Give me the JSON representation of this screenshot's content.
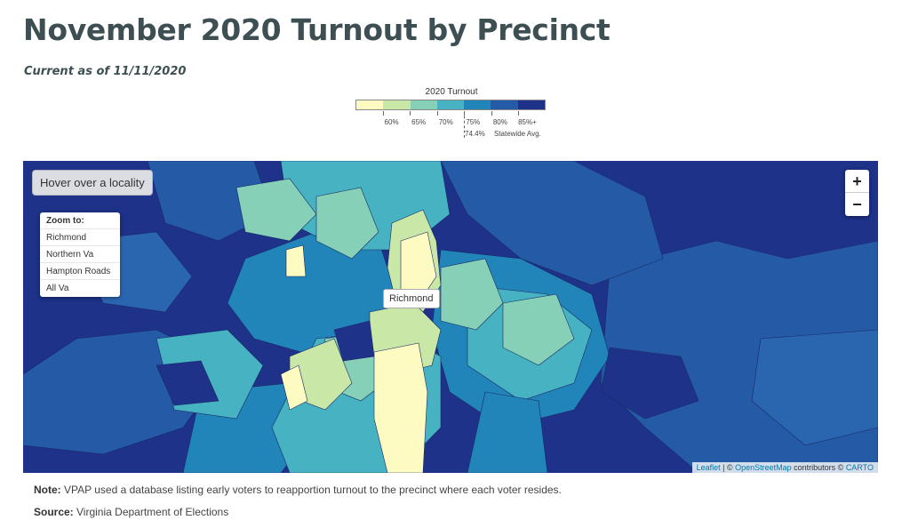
{
  "title": "November 2020 Turnout by Precinct",
  "subtitle": "Current as of 11/11/2020",
  "legend": {
    "title": "2020 Turnout",
    "colors": [
      "#fdfbc1",
      "#c9e8a7",
      "#86d0b7",
      "#46b2c2",
      "#2185ba",
      "#245aa6",
      "#1d3288"
    ],
    "labels": [
      "60%",
      "65%",
      "70%",
      "75%",
      "80%",
      "85%+"
    ],
    "avg_value": "74.4%",
    "avg_label": "Statewide Avg."
  },
  "map": {
    "hover_prompt": "Hover over a locality",
    "zoom_title": "Zoom to:",
    "zoom_items": [
      "Richmond",
      "Northern Va",
      "Hampton Roads",
      "All Va"
    ],
    "zoom_in": "+",
    "zoom_out": "−",
    "city_label": "Richmond",
    "attribution": {
      "leaflet": "Leaflet",
      "sep": " | © ",
      "osm": "OpenStreetMap",
      "contrib": " contributors © ",
      "carto": "CARTO"
    }
  },
  "note": {
    "label": "Note:",
    "text": " VPAP used a database listing early voters to reapportion turnout to the precinct where each voter resides."
  },
  "source": {
    "label": "Source:",
    "text": " Virginia Department of Elections"
  }
}
